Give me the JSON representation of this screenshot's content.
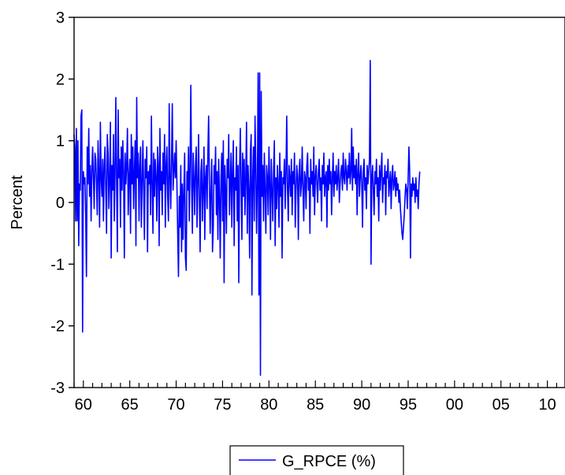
{
  "chart_data": {
    "type": "line",
    "title": "",
    "xlabel": "",
    "ylabel": "Percent",
    "xlim": [
      1959.0,
      2011.9
    ],
    "ylim": [
      -3,
      3
    ],
    "x_ticks": [
      1960,
      1965,
      1970,
      1975,
      1980,
      1985,
      1990,
      1995,
      2000,
      2005,
      2010
    ],
    "x_tick_labels": [
      "60",
      "65",
      "70",
      "75",
      "80",
      "85",
      "90",
      "95",
      "00",
      "05",
      "10"
    ],
    "y_ticks": [
      -3,
      -2,
      -1,
      0,
      1,
      2,
      3
    ],
    "y_tick_labels": [
      "-3",
      "-2",
      "-1",
      "0",
      "1",
      "2",
      "3"
    ],
    "grid": false,
    "legend": "bottom-center",
    "series": [
      {
        "name": "G_RPCE (%)",
        "color": "#0000ff",
        "x_start": 1959.0,
        "x_step": 0.08333,
        "values": [
          1.1,
          0.9,
          -0.3,
          1.2,
          -0.3,
          1.0,
          -0.7,
          0.3,
          0.2,
          1.4,
          1.5,
          -2.1,
          0.5,
          0.3,
          0.4,
          -0.2,
          -1.2,
          0.9,
          0.3,
          1.2,
          0.1,
          0.6,
          -0.3,
          0.5,
          0.9,
          0.4,
          -0.1,
          0.8,
          0.7,
          0.3,
          -0.2,
          1.0,
          0.5,
          -0.4,
          1.3,
          0.4,
          0.1,
          0.7,
          -0.3,
          0.6,
          0.9,
          0.2,
          -0.5,
          1.1,
          0.8,
          -0.1,
          0.4,
          1.3,
          -0.9,
          0.6,
          0.2,
          1.1,
          -0.3,
          0.5,
          1.7,
          0.3,
          -0.8,
          1.5,
          0.4,
          0.7,
          -0.4,
          0.9,
          0.2,
          1.0,
          0.5,
          -0.9,
          0.8,
          0.3,
          0.6,
          1.2,
          -0.2,
          0.4,
          0.7,
          -0.5,
          1.1,
          0.3,
          0.9,
          -0.1,
          0.5,
          1.0,
          -0.7,
          1.7,
          0.4,
          0.8,
          -0.3,
          0.6,
          0.9,
          -0.4,
          0.3,
          1.0,
          0.2,
          -0.6,
          0.7,
          0.4,
          0.9,
          -0.8,
          0.5,
          0.3,
          0.6,
          -0.2,
          1.4,
          0.3,
          -0.5,
          0.8,
          0.1,
          0.7,
          0.4,
          -0.3,
          0.9,
          0.6,
          -0.7,
          1.2,
          0.2,
          0.5,
          -0.2,
          0.8,
          0.3,
          1.1,
          -0.4,
          0.6,
          0.9,
          0.1,
          -0.3,
          1.6,
          0.4,
          -0.1,
          0.7,
          1.6,
          0.2,
          0.5,
          0.8,
          0.4,
          1.0,
          0.3,
          -0.5,
          -1.2,
          0.1,
          -0.4,
          0.6,
          -0.8,
          0.3,
          -0.6,
          0.2,
          0.8,
          -0.9,
          -1.1,
          0.5,
          0.2,
          0.9,
          -0.3,
          0.6,
          1.9,
          0.3,
          -0.5,
          0.8,
          0.4,
          -0.2,
          0.6,
          0.9,
          -0.4,
          0.3,
          1.1,
          0.1,
          -0.8,
          0.5,
          0.7,
          -0.3,
          0.2,
          0.9,
          -0.6,
          0.4,
          0.6,
          -0.1,
          0.8,
          1.4,
          0.3,
          -0.5,
          0.2,
          0.7,
          -0.8,
          -0.4,
          0.6,
          0.3,
          0.9,
          -0.2,
          0.5,
          -0.6,
          0.7,
          0.1,
          -0.9,
          0.4,
          0.8,
          -0.3,
          1.0,
          -1.3,
          0.6,
          0.2,
          -0.5,
          0.7,
          0.4,
          1.1,
          -0.2,
          0.3,
          0.8,
          -0.4,
          0.5,
          1.0,
          -0.7,
          0.4,
          0.2,
          0.9,
          -0.3,
          0.6,
          -1.3,
          0.5,
          1.2,
          0.3,
          -0.6,
          0.8,
          0.1,
          0.7,
          -0.2,
          0.4,
          1.3,
          -0.5,
          0.6,
          0.2,
          -0.9,
          0.8,
          1.1,
          -1.5,
          0.4,
          0.9,
          -0.3,
          1.4,
          0.6,
          -0.5,
          0.3,
          2.1,
          -1.5,
          2.1,
          -2.8,
          1.8,
          0.1,
          0.6,
          -0.3,
          0.8,
          0.2,
          -0.5,
          0.6,
          0.4,
          -0.2,
          0.9,
          0.3,
          -0.6,
          0.7,
          0.2,
          -0.3,
          0.5,
          1.0,
          -0.7,
          0.4,
          -0.1,
          0.6,
          0.3,
          -0.4,
          0.8,
          0.1,
          0.5,
          -0.9,
          0.4,
          0.3,
          0.7,
          -0.1,
          0.5,
          1.4,
          0.2,
          -0.3,
          0.6,
          0.4,
          0.1,
          0.7,
          -0.2,
          0.5,
          0.3,
          0.8,
          -0.4,
          0.2,
          0.6,
          0.4,
          -0.6,
          0.5,
          0.7,
          0.1,
          0.3,
          0.9,
          0.2,
          -0.3,
          0.5,
          0.4,
          -0.1,
          0.6,
          0.8,
          0.2,
          0.4,
          -0.5,
          0.7,
          0.3,
          0.5,
          0.1,
          0.9,
          -0.2,
          0.4,
          0.6,
          0.3,
          0.0,
          0.5,
          0.7,
          0.2,
          0.4,
          -0.3,
          0.6,
          0.3,
          0.8,
          0.1,
          0.4,
          0.5,
          -0.4,
          0.6,
          0.2,
          0.7,
          0.3,
          0.5,
          -0.2,
          0.4,
          0.8,
          0.1,
          0.5,
          0.3,
          0.6,
          0.2,
          0.4,
          0.7,
          0.0,
          0.3,
          0.5,
          0.6,
          0.2,
          0.8,
          0.4,
          0.3,
          0.7,
          0.5,
          0.2,
          0.6,
          0.4,
          0.8,
          0.3,
          0.5,
          1.2,
          0.2,
          0.9,
          0.4,
          0.6,
          0.3,
          0.7,
          -0.2,
          0.5,
          0.8,
          0.1,
          0.4,
          0.6,
          0.3,
          -0.4,
          0.5,
          0.7,
          0.2,
          0.4,
          -0.1,
          0.6,
          0.3,
          0.5,
          0.7,
          2.3,
          -1.0,
          0.4,
          0.6,
          0.2,
          -0.2,
          0.5,
          0.3,
          0.7,
          0.1,
          0.4,
          -0.3,
          0.6,
          0.2,
          0.5,
          0.8,
          0.0,
          0.4,
          0.3,
          0.6,
          -0.2,
          0.5,
          0.4,
          0.7,
          0.1,
          0.3,
          0.5,
          -0.1,
          0.4,
          0.6,
          0.2,
          0.3,
          0.5,
          0.1,
          0.4,
          0.2,
          0.3,
          0.0,
          0.2,
          -0.1,
          -0.3,
          -0.5,
          -0.6,
          -0.4,
          -0.2,
          0.1,
          0.3,
          0.2,
          -0.1,
          0.4,
          0.9,
          0.5,
          -0.9,
          0.3,
          0.1,
          0.4,
          0.2,
          0.3,
          0.0,
          0.4,
          0.1,
          0.2,
          -0.1,
          0.3,
          0.5
        ]
      }
    ]
  }
}
